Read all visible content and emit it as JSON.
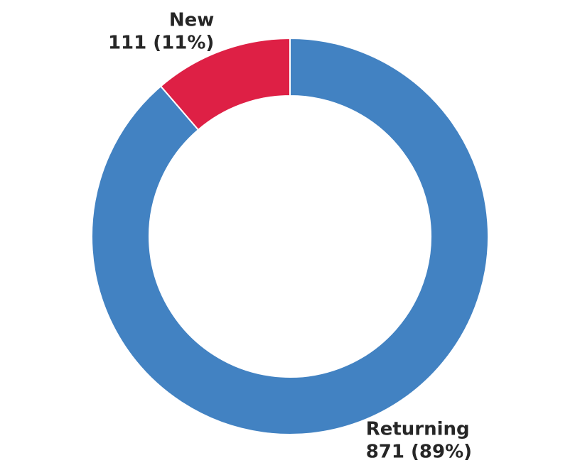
{
  "chart_data": {
    "type": "donut",
    "categories": [
      "New",
      "Returning"
    ],
    "values": [
      111,
      871
    ],
    "value_labels": [
      "111 (11%)",
      "871 (89%)"
    ],
    "colors": [
      "#de2045",
      "#4282c2"
    ]
  }
}
